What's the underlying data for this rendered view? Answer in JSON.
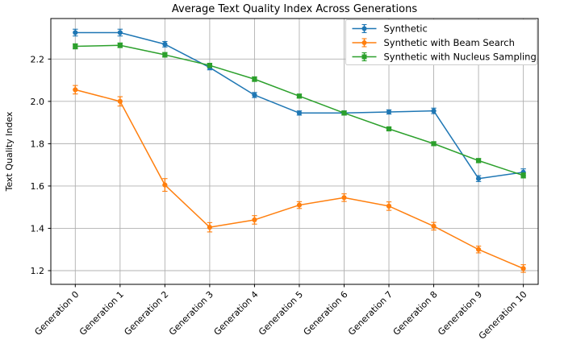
{
  "figure": {
    "title": "Average Text Quality Index Across Generations"
  },
  "chart_data": {
    "type": "line",
    "title": "Average Text Quality Index Across Generations",
    "xlabel": "",
    "ylabel": "Text Quality Index",
    "categories": [
      "Generation 0",
      "Generation 1",
      "Generation 2",
      "Generation 3",
      "Generation 4",
      "Generation 5",
      "Generation 6",
      "Generation 7",
      "Generation 8",
      "Generation 9",
      "Generation 10"
    ],
    "yticks": [
      1.2,
      1.4,
      1.6,
      1.8,
      2.0,
      2.2
    ],
    "ytick_labels": [
      "1.2",
      "1.4",
      "1.6",
      "1.8",
      "2.0",
      "2.2"
    ],
    "ylim": [
      1.13,
      2.39
    ],
    "grid": true,
    "grid_color": "#b0b0b0",
    "legend_position": "upper right",
    "series": [
      {
        "name": "Synthetic",
        "color": "#1f77b4",
        "marker": "circle",
        "values": [
          2.325,
          2.325,
          2.27,
          2.16,
          2.03,
          1.945,
          1.945,
          1.95,
          1.955,
          1.635,
          1.665
        ],
        "errors": [
          0.016,
          0.016,
          0.013,
          0.011,
          0.012,
          0.01,
          0.01,
          0.01,
          0.013,
          0.014,
          0.016
        ]
      },
      {
        "name": "Synthetic with Beam Search",
        "color": "#ff7f0e",
        "marker": "circle",
        "values": [
          2.055,
          2.0,
          1.605,
          1.405,
          1.44,
          1.51,
          1.545,
          1.505,
          1.41,
          1.3,
          1.21
        ],
        "errors": [
          0.02,
          0.022,
          0.03,
          0.022,
          0.02,
          0.016,
          0.018,
          0.02,
          0.018,
          0.016,
          0.018
        ]
      },
      {
        "name": "Synthetic with Nucleus Sampling",
        "color": "#2ca02c",
        "marker": "square",
        "values": [
          2.26,
          2.265,
          2.22,
          2.17,
          2.105,
          2.025,
          1.945,
          1.87,
          1.8,
          1.72,
          1.65
        ],
        "errors": [
          0.012,
          0.011,
          0.011,
          0.01,
          0.011,
          0.009,
          0.009,
          0.008,
          0.009,
          0.01,
          0.012
        ]
      }
    ]
  }
}
